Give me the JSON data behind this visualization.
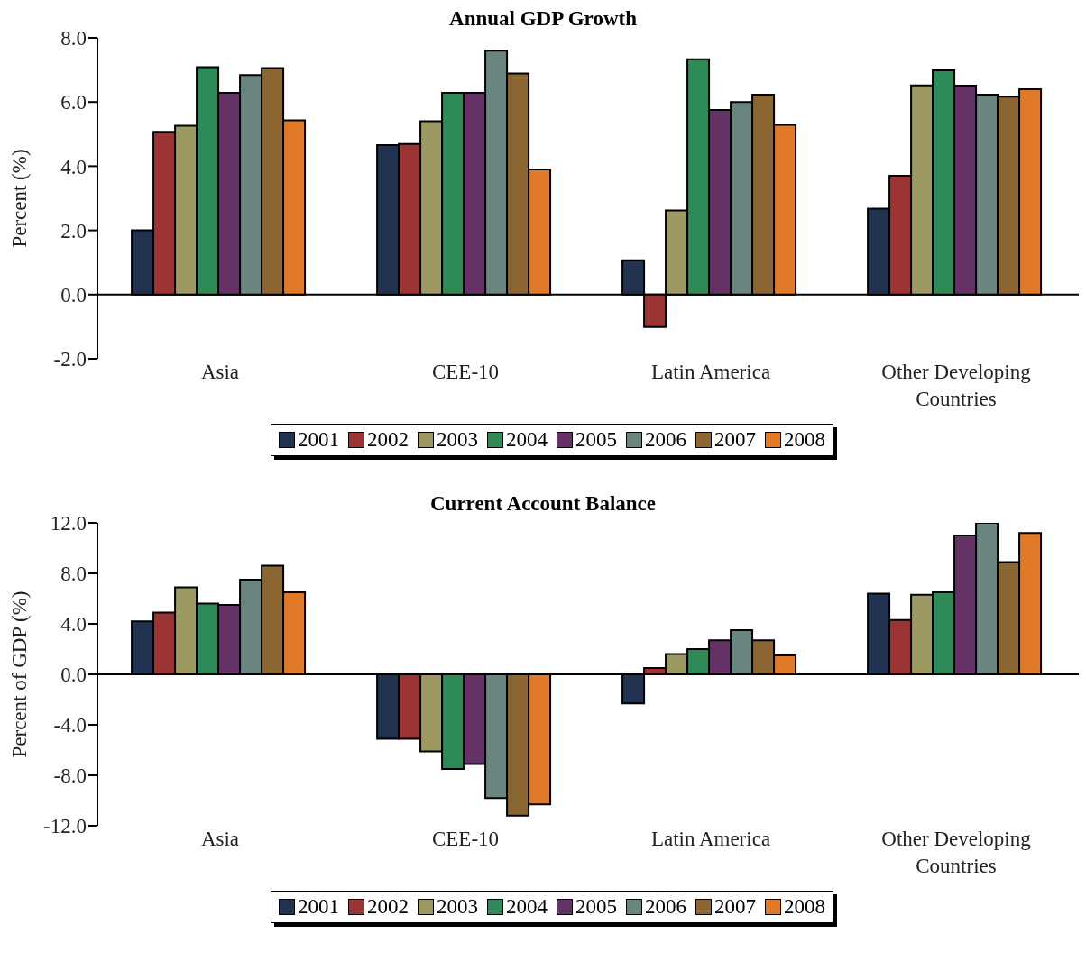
{
  "chart_data": [
    {
      "type": "bar",
      "title": "Annual GDP Growth",
      "ylabel": "Percent (%)",
      "categories": [
        "Asia",
        "CEE-10",
        "Latin America",
        "Other Developing Countries"
      ],
      "series": [
        {
          "name": "2001",
          "color": "#223352",
          "values": [
            2.0,
            4.66,
            1.07,
            2.68
          ]
        },
        {
          "name": "2002",
          "color": "#9b3535",
          "values": [
            5.07,
            4.69,
            -1.01,
            3.7
          ]
        },
        {
          "name": "2003",
          "color": "#9c9a62",
          "values": [
            5.26,
            5.4,
            2.62,
            6.52
          ]
        },
        {
          "name": "2004",
          "color": "#2e8b57",
          "values": [
            7.09,
            6.29,
            7.33,
            6.99
          ]
        },
        {
          "name": "2005",
          "color": "#643264",
          "values": [
            6.29,
            6.29,
            5.75,
            6.51
          ]
        },
        {
          "name": "2006",
          "color": "#6a8580",
          "values": [
            6.84,
            7.6,
            6.0,
            6.23
          ]
        },
        {
          "name": "2007",
          "color": "#8b6532",
          "values": [
            7.06,
            6.89,
            6.23,
            6.17
          ]
        },
        {
          "name": "2008",
          "color": "#e07a28",
          "values": [
            5.43,
            3.9,
            5.29,
            6.4
          ]
        }
      ],
      "ylim": [
        -2,
        8
      ],
      "yticks": [
        {
          "value": -2,
          "label": "-2.0"
        },
        {
          "value": 0,
          "label": "0.0"
        },
        {
          "value": 2,
          "label": "2.0"
        },
        {
          "value": 4,
          "label": "4.0"
        },
        {
          "value": 6,
          "label": "6.0"
        },
        {
          "value": 8,
          "label": "8.0"
        }
      ],
      "legend": "bottom"
    },
    {
      "type": "bar",
      "title": "Current Account Balance",
      "ylabel": "Percent of GDP (%)",
      "categories": [
        "Asia",
        "CEE-10",
        "Latin America",
        "Other Developing Countries"
      ],
      "series": [
        {
          "name": "2001",
          "color": "#223352",
          "values": [
            4.2,
            -5.1,
            -2.3,
            6.4
          ]
        },
        {
          "name": "2002",
          "color": "#9b3535",
          "values": [
            4.9,
            -5.1,
            0.5,
            4.3
          ]
        },
        {
          "name": "2003",
          "color": "#9c9a62",
          "values": [
            6.9,
            -6.1,
            1.6,
            6.3
          ]
        },
        {
          "name": "2004",
          "color": "#2e8b57",
          "values": [
            5.6,
            -7.5,
            2.0,
            6.5
          ]
        },
        {
          "name": "2005",
          "color": "#643264",
          "values": [
            5.5,
            -7.1,
            2.7,
            11.0
          ]
        },
        {
          "name": "2006",
          "color": "#6a8580",
          "values": [
            7.5,
            -9.8,
            3.5,
            12.0
          ]
        },
        {
          "name": "2007",
          "color": "#8b6532",
          "values": [
            8.6,
            -11.2,
            2.7,
            8.9
          ]
        },
        {
          "name": "2008",
          "color": "#e07a28",
          "values": [
            6.5,
            -10.3,
            1.5,
            11.2
          ]
        }
      ],
      "ylim": [
        -12,
        12
      ],
      "yticks": [
        {
          "value": -12,
          "label": "-12.0"
        },
        {
          "value": -8,
          "label": "-8.0"
        },
        {
          "value": -4,
          "label": "-4.0"
        },
        {
          "value": 0,
          "label": "0.0"
        },
        {
          "value": 4,
          "label": "4.0"
        },
        {
          "value": 8,
          "label": "8.0"
        },
        {
          "value": 12,
          "label": "12.0"
        }
      ],
      "legend": "bottom"
    }
  ]
}
